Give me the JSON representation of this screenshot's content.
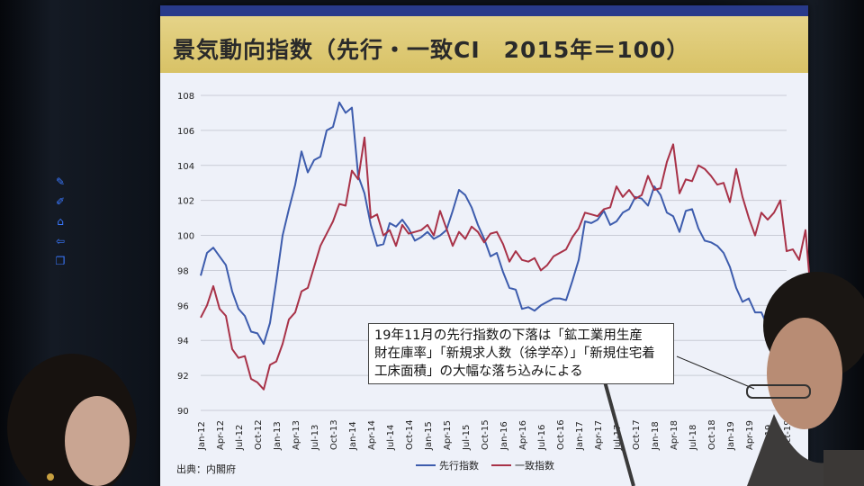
{
  "title": "景気動向指数（先行・一致CI　2015年＝100）",
  "source": "出典：内閣府",
  "annotation": {
    "lines": [
      "19年11月の先行指数の下落は「鉱工業用生産",
      "財在庫率」「新規求人数（徐学卒）」「新規住宅着",
      "工床面積」の大幅な落ち込みによる"
    ]
  },
  "sidebar": [
    "pen-edit-icon",
    "edit-icon",
    "home-icon",
    "back-arrow-icon",
    "window-icon"
  ],
  "colors": {
    "leading": "#3d5cad",
    "coincident": "#a83248",
    "grid": "#c9ccd6"
  },
  "chart_data": {
    "type": "line",
    "title": "景気動向指数（先行・一致CI　2015年＝100）",
    "ylim": [
      90,
      108
    ],
    "yticks": [
      "90",
      "92",
      "94",
      "96",
      "98",
      "100",
      "102",
      "104",
      "106",
      "108"
    ],
    "xticks": [
      "Jan-12",
      "Apr-12",
      "Jul-12",
      "Oct-12",
      "Jan-13",
      "Apr-13",
      "Jul-13",
      "Oct-13",
      "Jan-14",
      "Apr-14",
      "Jul-14",
      "Oct-14",
      "Jan-15",
      "Apr-15",
      "Jul-15",
      "Oct-15",
      "Jan-16",
      "Apr-16",
      "Jul-16",
      "Oct-16",
      "Jan-17",
      "Apr-17",
      "Jul-17",
      "Oct-17",
      "Jan-18",
      "Apr-18",
      "Jul-18",
      "Oct-18",
      "Jan-19",
      "Apr-19",
      "Jul-19",
      "Oct-19"
    ],
    "grid": true,
    "legend": "bottom",
    "series": [
      {
        "name": "先行指数",
        "color": "#3d5cad",
        "values": [
          97.7,
          99.0,
          99.3,
          98.8,
          98.3,
          96.8,
          95.8,
          95.4,
          94.5,
          94.4,
          93.8,
          95.0,
          97.4,
          100.0,
          101.5,
          102.9,
          104.8,
          103.6,
          104.3,
          104.5,
          106.0,
          106.2,
          107.6,
          107.0,
          107.3,
          103.4,
          102.4,
          100.6,
          99.4,
          99.5,
          100.7,
          100.5,
          100.9,
          100.4,
          99.7,
          99.9,
          100.2,
          99.8,
          100.0,
          100.3,
          101.4,
          102.6,
          102.3,
          101.6,
          100.6,
          99.8,
          98.8,
          99.0,
          97.9,
          97.0,
          96.9,
          95.8,
          95.9,
          95.7,
          96.0,
          96.2,
          96.4,
          96.4,
          96.3,
          97.4,
          98.6,
          100.8,
          100.7,
          100.9,
          101.4,
          100.6,
          100.8,
          101.3,
          101.5,
          102.2,
          102.1,
          101.7,
          102.8,
          102.3,
          101.3,
          101.1,
          100.2,
          101.4,
          101.5,
          100.4,
          99.7,
          99.6,
          99.4,
          99.0,
          98.2,
          97.0,
          96.2,
          96.4,
          95.6,
          95.6,
          94.8,
          93.3,
          93.6,
          92.2
        ]
      },
      {
        "name": "一致指数",
        "color": "#a83248",
        "values": [
          95.3,
          96.0,
          97.1,
          95.8,
          95.4,
          93.5,
          93.0,
          93.1,
          91.8,
          91.6,
          91.2,
          92.6,
          92.8,
          93.8,
          95.2,
          95.6,
          96.8,
          97.0,
          98.2,
          99.4,
          100.1,
          100.8,
          101.8,
          101.7,
          103.7,
          103.2,
          105.6,
          101.0,
          101.2,
          100.0,
          100.3,
          99.4,
          100.6,
          100.1,
          100.2,
          100.3,
          100.6,
          100.0,
          101.4,
          100.4,
          99.4,
          100.2,
          99.8,
          100.5,
          100.2,
          99.6,
          100.1,
          100.2,
          99.5,
          98.5,
          99.1,
          98.6,
          98.5,
          98.7,
          98.0,
          98.3,
          98.8,
          99.0,
          99.2,
          99.9,
          100.4,
          101.3,
          101.2,
          101.1,
          101.5,
          101.6,
          102.8,
          102.2,
          102.6,
          102.1,
          102.3,
          103.4,
          102.6,
          102.7,
          104.2,
          105.2,
          102.4,
          103.2,
          103.1,
          104.0,
          103.8,
          103.4,
          102.9,
          103.0,
          101.9,
          103.8,
          102.2,
          101.0,
          100.0,
          101.3,
          100.9,
          101.3,
          102.0,
          99.1,
          99.2,
          98.6,
          100.3,
          96.0
        ]
      }
    ]
  }
}
